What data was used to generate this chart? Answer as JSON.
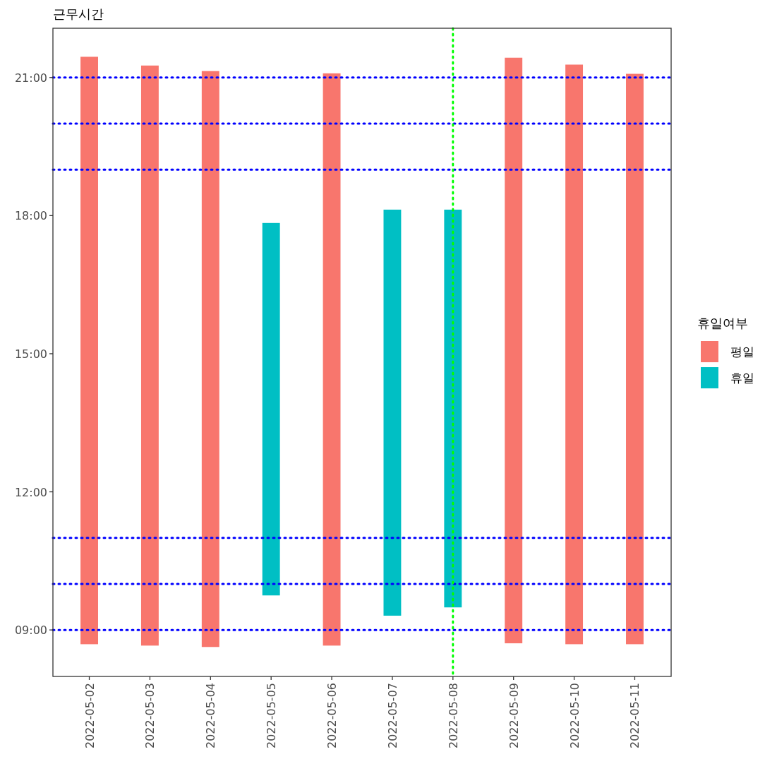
{
  "chart_data": {
    "type": "bar",
    "title": "근무시간",
    "legend_title": "휴일여부",
    "legend": "right",
    "categories": [
      "2022-05-02",
      "2022-05-03",
      "2022-05-04",
      "2022-05-05",
      "2022-05-06",
      "2022-05-07",
      "2022-05-08",
      "2022-05-09",
      "2022-05-10",
      "2022-05-11"
    ],
    "series": [
      {
        "name": "평일",
        "color": "#f8766d",
        "base": [
          8.69,
          8.66,
          8.63,
          null,
          8.66,
          null,
          null,
          8.71,
          8.69,
          8.69
        ],
        "values": [
          12.76,
          12.6,
          12.51,
          null,
          12.43,
          null,
          null,
          12.72,
          12.59,
          12.39
        ]
      },
      {
        "name": "휴일",
        "color": "#00bfc4",
        "base": [
          null,
          null,
          null,
          9.75,
          null,
          9.31,
          9.49,
          null,
          null,
          null
        ],
        "values": [
          null,
          null,
          null,
          8.09,
          null,
          8.82,
          8.64,
          null,
          null,
          null
        ]
      }
    ],
    "ylim": [
      7.99,
      22.07
    ],
    "yticks": [
      {
        "value": 9,
        "label": "09:00"
      },
      {
        "value": 12,
        "label": "12:00"
      },
      {
        "value": 15,
        "label": "15:00"
      },
      {
        "value": 18,
        "label": "18:00"
      },
      {
        "value": 21,
        "label": "21:00"
      }
    ],
    "line_style": "dotted",
    "ref_lines": [
      {
        "axis": "y",
        "value": 9,
        "color": "#0000ff"
      },
      {
        "axis": "y",
        "value": 10,
        "color": "#0000ff"
      },
      {
        "axis": "y",
        "value": 11,
        "color": "#0000ff"
      },
      {
        "axis": "y",
        "value": 19,
        "color": "#0000ff"
      },
      {
        "axis": "y",
        "value": 20,
        "color": "#0000ff"
      },
      {
        "axis": "y",
        "value": 21,
        "color": "#0000ff"
      },
      {
        "axis": "x",
        "value": "2022-05-08",
        "color": "#00ff00"
      }
    ]
  }
}
